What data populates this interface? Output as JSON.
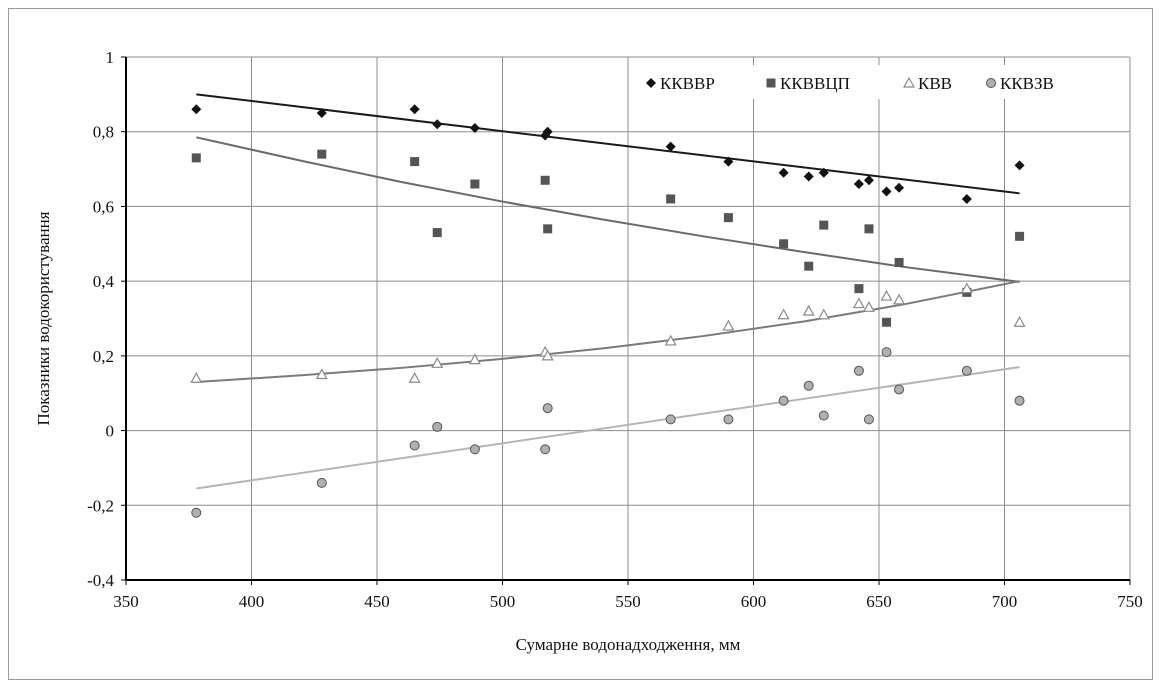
{
  "chart_data": {
    "type": "scatter",
    "title": "",
    "xlabel": "Сумарне водонадходження, мм",
    "ylabel": "Показники водокористування",
    "xlim": [
      350,
      750
    ],
    "ylim": [
      -0.4,
      1
    ],
    "x_ticks": [
      350,
      400,
      450,
      500,
      550,
      600,
      650,
      700,
      750
    ],
    "y_ticks": [
      -0.4,
      -0.2,
      0,
      0.2,
      0.4,
      0.6,
      0.8,
      1
    ],
    "x_tick_labels": [
      "350",
      "400",
      "450",
      "500",
      "550",
      "600",
      "650",
      "700",
      "750"
    ],
    "y_tick_labels": [
      "-0,4",
      "-0,2",
      "0",
      "0,2",
      "0,4",
      "0,6",
      "0,8",
      "1"
    ],
    "grid": true,
    "legend_position": "top-right",
    "series": [
      {
        "name": "ККВВР",
        "marker": "diamond",
        "color": "#111111",
        "trend_color": "#1a1a1a",
        "x": [
          378,
          428,
          465,
          474,
          489,
          517,
          518,
          567,
          590,
          612,
          622,
          628,
          642,
          646,
          653,
          658,
          685,
          706
        ],
        "y": [
          0.86,
          0.85,
          0.86,
          0.82,
          0.81,
          0.79,
          0.8,
          0.76,
          0.72,
          0.69,
          0.68,
          0.69,
          0.66,
          0.67,
          0.64,
          0.65,
          0.62,
          0.71
        ],
        "trend": {
          "x": [
            378,
            706
          ],
          "y": [
            0.9,
            0.635
          ]
        }
      },
      {
        "name": "ККВВЦП",
        "marker": "square",
        "color": "#555555",
        "trend_color": "#6a6a6a",
        "x": [
          378,
          428,
          465,
          474,
          489,
          517,
          518,
          567,
          590,
          612,
          622,
          628,
          642,
          646,
          653,
          658,
          685,
          706
        ],
        "y": [
          0.73,
          0.74,
          0.72,
          0.53,
          0.66,
          0.67,
          0.54,
          0.62,
          0.57,
          0.5,
          0.44,
          0.55,
          0.38,
          0.54,
          0.29,
          0.45,
          0.37,
          0.52
        ],
        "trend": {
          "x": [
            378,
            420,
            460,
            500,
            540,
            580,
            620,
            660,
            706
          ],
          "y": [
            0.785,
            0.722,
            0.665,
            0.613,
            0.565,
            0.52,
            0.478,
            0.438,
            0.398
          ]
        }
      },
      {
        "name": "КВВ",
        "marker": "triangle",
        "color": "#8a8a8a",
        "trend_color": "#7a7a7a",
        "x": [
          378,
          428,
          465,
          474,
          489,
          517,
          518,
          567,
          590,
          612,
          622,
          628,
          642,
          646,
          653,
          658,
          685,
          706
        ],
        "y": [
          0.14,
          0.15,
          0.14,
          0.18,
          0.19,
          0.21,
          0.2,
          0.24,
          0.28,
          0.31,
          0.32,
          0.31,
          0.34,
          0.33,
          0.36,
          0.35,
          0.38,
          0.29
        ],
        "trend": {
          "x": [
            378,
            420,
            460,
            500,
            540,
            580,
            620,
            660,
            706
          ],
          "y": [
            0.13,
            0.148,
            0.168,
            0.192,
            0.22,
            0.253,
            0.292,
            0.338,
            0.4
          ]
        }
      },
      {
        "name": "ККВЗВ",
        "marker": "circle",
        "color": "#9a9a9a",
        "trend_color": "#b5b5b5",
        "x": [
          378,
          428,
          465,
          474,
          489,
          517,
          518,
          567,
          590,
          612,
          622,
          628,
          642,
          646,
          653,
          658,
          685,
          706
        ],
        "y": [
          -0.22,
          -0.14,
          -0.04,
          0.01,
          -0.05,
          -0.05,
          0.06,
          0.03,
          0.03,
          0.08,
          0.12,
          0.04,
          0.16,
          0.03,
          0.21,
          0.11,
          0.16,
          0.08
        ],
        "trend": {
          "x": [
            378,
            706
          ],
          "y": [
            -0.155,
            0.17
          ]
        }
      }
    ]
  }
}
